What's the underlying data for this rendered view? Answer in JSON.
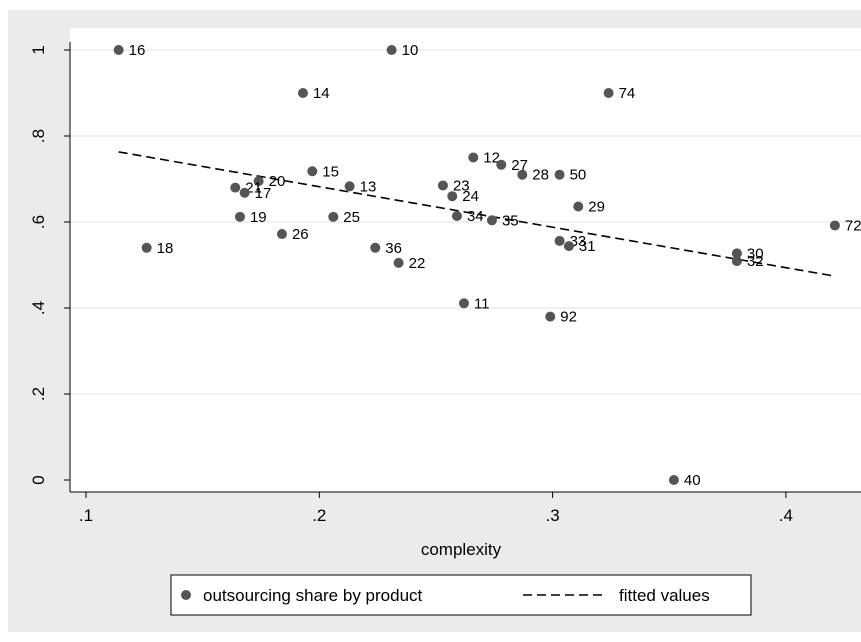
{
  "chart_data": {
    "type": "scatter",
    "title": "",
    "xlabel": "complexity",
    "ylabel": "",
    "xlim": [
      0.1,
      0.425
    ],
    "ylim": [
      0,
      1
    ],
    "x_ticks": [
      0.1,
      0.2,
      0.3,
      0.4
    ],
    "x_tick_labels": [
      ".1",
      ".2",
      ".3",
      ".4"
    ],
    "y_ticks": [
      0,
      0.2,
      0.4,
      0.6,
      0.8,
      1
    ],
    "y_tick_labels": [
      "0",
      ".2",
      ".4",
      ".6",
      ".8",
      "1"
    ],
    "grid": "horizontal",
    "legend_position": "bottom",
    "series": [
      {
        "name": "outsourcing share by product",
        "kind": "scatter",
        "points": [
          {
            "x": 0.114,
            "y": 1.0,
            "label": "16"
          },
          {
            "x": 0.231,
            "y": 1.0,
            "label": "10"
          },
          {
            "x": 0.193,
            "y": 0.9,
            "label": "14"
          },
          {
            "x": 0.324,
            "y": 0.9,
            "label": "74"
          },
          {
            "x": 0.266,
            "y": 0.75,
            "label": "12"
          },
          {
            "x": 0.278,
            "y": 0.733,
            "label": "27"
          },
          {
            "x": 0.197,
            "y": 0.718,
            "label": "15"
          },
          {
            "x": 0.287,
            "y": 0.71,
            "label": "28"
          },
          {
            "x": 0.303,
            "y": 0.71,
            "label": "50"
          },
          {
            "x": 0.174,
            "y": 0.695,
            "label": "20"
          },
          {
            "x": 0.253,
            "y": 0.685,
            "label": "23"
          },
          {
            "x": 0.213,
            "y": 0.683,
            "label": "13"
          },
          {
            "x": 0.164,
            "y": 0.68,
            "label": "21"
          },
          {
            "x": 0.168,
            "y": 0.668,
            "label": "17"
          },
          {
            "x": 0.257,
            "y": 0.66,
            "label": "24"
          },
          {
            "x": 0.311,
            "y": 0.636,
            "label": "29"
          },
          {
            "x": 0.166,
            "y": 0.612,
            "label": "19"
          },
          {
            "x": 0.206,
            "y": 0.612,
            "label": "25"
          },
          {
            "x": 0.259,
            "y": 0.614,
            "label": "34"
          },
          {
            "x": 0.274,
            "y": 0.604,
            "label": "35"
          },
          {
            "x": 0.421,
            "y": 0.592,
            "label": "72"
          },
          {
            "x": 0.184,
            "y": 0.572,
            "label": "26"
          },
          {
            "x": 0.303,
            "y": 0.556,
            "label": "33"
          },
          {
            "x": 0.126,
            "y": 0.54,
            "label": "18"
          },
          {
            "x": 0.224,
            "y": 0.54,
            "label": "36"
          },
          {
            "x": 0.307,
            "y": 0.544,
            "label": "31"
          },
          {
            "x": 0.379,
            "y": 0.527,
            "label": "30"
          },
          {
            "x": 0.379,
            "y": 0.509,
            "label": "32"
          },
          {
            "x": 0.234,
            "y": 0.505,
            "label": "22"
          },
          {
            "x": 0.262,
            "y": 0.411,
            "label": "11"
          },
          {
            "x": 0.299,
            "y": 0.38,
            "label": "92"
          },
          {
            "x": 0.352,
            "y": 0.0,
            "label": "40"
          }
        ]
      },
      {
        "name": "fitted values",
        "kind": "line",
        "style": "dashed",
        "points": [
          {
            "x": 0.114,
            "y": 0.763
          },
          {
            "x": 0.421,
            "y": 0.474
          }
        ]
      }
    ],
    "colors": {
      "background": "#ebebeb",
      "plot_background": "#ffffff",
      "marker": "#555555",
      "line": "#000000",
      "grid": "#e6e6e6"
    }
  }
}
